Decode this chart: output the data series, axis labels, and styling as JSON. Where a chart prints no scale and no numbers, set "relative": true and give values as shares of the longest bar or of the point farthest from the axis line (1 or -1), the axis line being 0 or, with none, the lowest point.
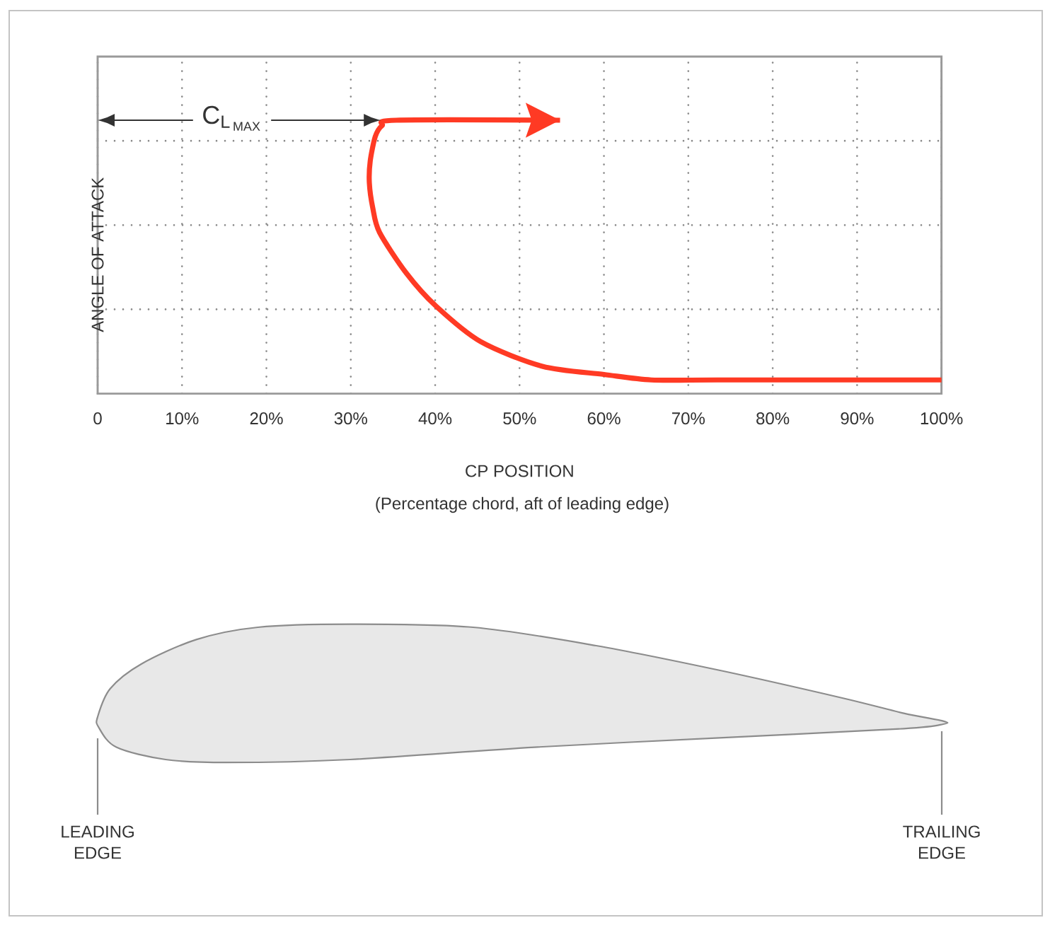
{
  "chart_data": {
    "type": "line",
    "xlabel": "CP POSITION",
    "ylabel": "ANGLE OF ATTACK",
    "annotations": [
      {
        "text": {
          "tex": "\\mathrm{C}_{\\mathrm{L}_{\\,\\mathrm{MAX}}}"
        }
      },
      "(Percentage chord, aft of leading edge)",
      "LEADING EDGE",
      "TRAILING EDGE"
    ],
    "relative": true,
    "xlim": [
      0,
      100
    ],
    "xticks": [
      0,
      {
        "value": 10,
        "label": "10%"
      },
      {
        "value": 20,
        "label": "20%"
      },
      {
        "value": 30,
        "label": "30%"
      },
      {
        "value": 40,
        "label": "40%"
      },
      {
        "value": 50,
        "label": "50%"
      },
      {
        "value": 60,
        "label": "60%"
      },
      {
        "value": 70,
        "label": "70%"
      },
      {
        "value": 80,
        "label": "80%"
      },
      {
        "value": 90,
        "label": "90%"
      },
      {
        "value": 100,
        "label": "100%"
      }
    ],
    "grid": true,
    "series": [
      {
        "color": "#ff3a24",
        "x": [
          100,
          73.4,
          65.6,
          60.0,
          52.7,
          45.4,
          40.1,
          36.6,
          33.4,
          32.6,
          32.2,
          32.3,
          32.9,
          33.7,
          35.4,
          54.8
        ],
        "values": [
          0.05,
          0.05,
          0.05,
          0.07,
          0.1,
          0.19,
          0.32,
          0.44,
          0.59,
          0.68,
          0.77,
          0.85,
          0.94,
          0.98,
          1,
          1
        ]
      }
    ]
  }
}
